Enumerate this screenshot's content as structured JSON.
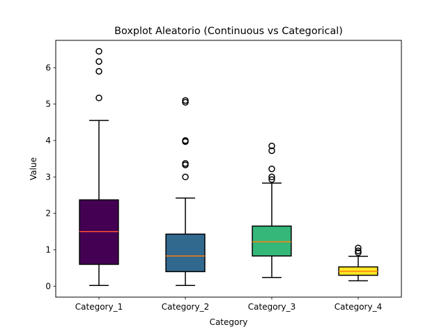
{
  "chart_data": {
    "type": "box",
    "title": "Boxplot Aleatorio (Continuous vs Categorical)",
    "xlabel": "Category",
    "ylabel": "Value",
    "ylim": [
      -0.3,
      6.75
    ],
    "yticks": [
      0,
      1,
      2,
      3,
      4,
      5,
      6
    ],
    "grid": false,
    "categories": [
      "Category_1",
      "Category_2",
      "Category_3",
      "Category_4"
    ],
    "boxes": [
      {
        "category": "Category_1",
        "whisker_low": 0.02,
        "q1": 0.6,
        "median": 1.5,
        "q3": 2.37,
        "whisker_high": 4.55,
        "outliers": [
          5.17,
          5.9,
          6.17,
          6.45
        ],
        "color": "#440154",
        "median_color": "#ff4e33"
      },
      {
        "category": "Category_2",
        "whisker_low": 0.02,
        "q1": 0.4,
        "median": 0.83,
        "q3": 1.43,
        "whisker_high": 2.42,
        "outliers": [
          3.0,
          3.33,
          3.37,
          3.97,
          4.0,
          5.05,
          5.1
        ],
        "color": "#31688e",
        "median_color": "#ff7f0e"
      },
      {
        "category": "Category_3",
        "whisker_low": 0.24,
        "q1": 0.83,
        "median": 1.22,
        "q3": 1.65,
        "whisker_high": 2.83,
        "outliers": [
          2.93,
          3.0,
          3.22,
          3.72,
          3.85
        ],
        "color": "#35b779",
        "median_color": "#ff7f0e"
      },
      {
        "category": "Category_4",
        "whisker_low": 0.15,
        "q1": 0.3,
        "median": 0.41,
        "q3": 0.53,
        "whisker_high": 0.82,
        "outliers": [
          0.92,
          0.97,
          1.05
        ],
        "color": "#fde725",
        "median_color": "#ff7f0e"
      }
    ]
  }
}
